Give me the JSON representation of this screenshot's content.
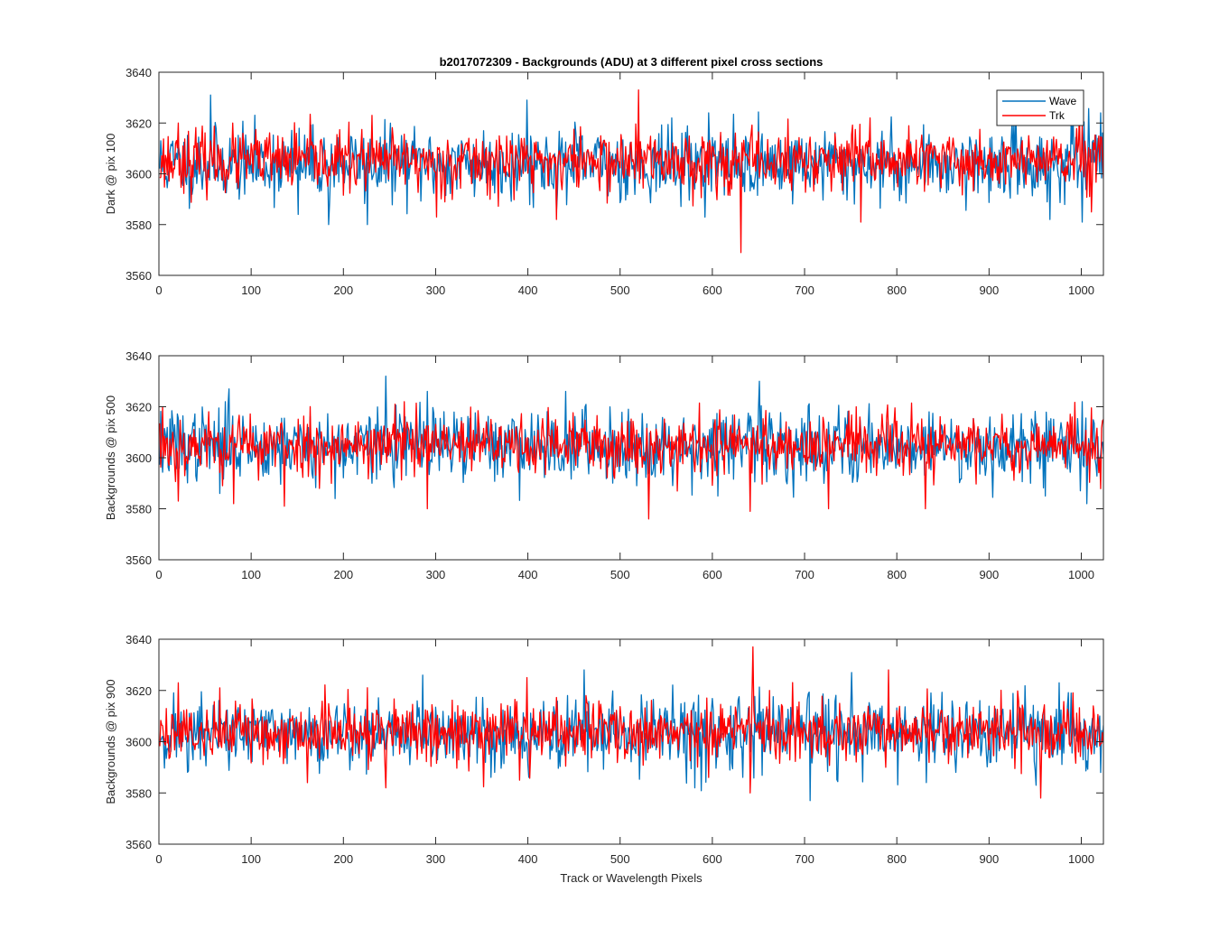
{
  "figure_title": "b2017072309 - Backgrounds (ADU) at 3 different pixel cross sections",
  "xlabel": "Track or Wavelength Pixels",
  "legend": {
    "entries": [
      "Wave",
      "Trk"
    ],
    "placement": "top-right",
    "colors": [
      "#0072BD",
      "#FF0000"
    ]
  },
  "chart_data": [
    {
      "type": "line",
      "title": "b2017072309 - Backgrounds (ADU) at 3 different pixel cross sections",
      "ylabel": "Dark @ pix 100",
      "xlabel": "",
      "xlim": [
        0,
        1024
      ],
      "ylim": [
        3560,
        3640
      ],
      "xticks": [
        0,
        100,
        200,
        300,
        400,
        500,
        600,
        700,
        800,
        900,
        1000
      ],
      "yticks": [
        3560,
        3580,
        3600,
        3620,
        3640
      ],
      "grid": false,
      "legend": "top-right",
      "series": [
        {
          "name": "Wave",
          "color": "#0072BD",
          "count": 1024,
          "mean": 3604,
          "std": 7,
          "seed": 11,
          "peaks": [
            [
              55,
              3631
            ],
            [
              398,
              3629
            ],
            [
              595,
              3624
            ],
            [
              990,
              3624
            ],
            [
              1020,
              3624
            ]
          ],
          "dips": [
            [
              183,
              3580
            ],
            [
              225,
              3580
            ],
            [
              150,
              3584
            ],
            [
              1000,
              3581
            ],
            [
              965,
              3582
            ]
          ]
        },
        {
          "name": "Trk",
          "color": "#FF0000",
          "count": 1024,
          "mean": 3605,
          "std": 6,
          "seed": 23,
          "peaks": [
            [
              519,
              3633
            ],
            [
              770,
              3622
            ],
            [
              230,
              3623
            ],
            [
              20,
              3620
            ]
          ],
          "dips": [
            [
              630,
              3569
            ],
            [
              430,
              3582
            ],
            [
              760,
              3581
            ],
            [
              300,
              3583
            ],
            [
              1010,
              3585
            ]
          ]
        }
      ]
    },
    {
      "type": "line",
      "ylabel": "Backgrounds @ pix 500",
      "xlabel": "",
      "xlim": [
        0,
        1024
      ],
      "ylim": [
        3560,
        3640
      ],
      "xticks": [
        0,
        100,
        200,
        300,
        400,
        500,
        600,
        700,
        800,
        900,
        1000
      ],
      "yticks": [
        3560,
        3580,
        3600,
        3620,
        3640
      ],
      "grid": false,
      "series": [
        {
          "name": "Wave",
          "color": "#0072BD",
          "count": 1024,
          "mean": 3605,
          "std": 7,
          "seed": 37,
          "peaks": [
            [
              245,
              3632
            ],
            [
              650,
              3630
            ],
            [
              75,
              3627
            ],
            [
              440,
              3626
            ],
            [
              290,
              3626
            ],
            [
              1000,
              3622
            ]
          ],
          "dips": [
            [
              65,
              3586
            ],
            [
              190,
              3584
            ],
            [
              605,
              3585
            ],
            [
              1005,
              3582
            ],
            [
              960,
              3585
            ]
          ]
        },
        {
          "name": "Trk",
          "color": "#FF0000",
          "count": 1024,
          "mean": 3605,
          "std": 6,
          "seed": 53,
          "peaks": [
            [
              265,
              3622
            ],
            [
              255,
              3621
            ],
            [
              3,
              3620
            ],
            [
              755,
              3620
            ]
          ],
          "dips": [
            [
              530,
              3576
            ],
            [
              135,
              3581
            ],
            [
              290,
              3580
            ],
            [
              640,
              3579
            ],
            [
              725,
              3580
            ],
            [
              830,
              3580
            ],
            [
              20,
              3583
            ],
            [
              80,
              3582
            ]
          ]
        }
      ]
    },
    {
      "type": "line",
      "ylabel": "Backgrounds @ pix 900",
      "xlabel": "Track or Wavelength Pixels",
      "xlim": [
        0,
        1024
      ],
      "ylim": [
        3560,
        3640
      ],
      "xticks": [
        0,
        100,
        200,
        300,
        400,
        500,
        600,
        700,
        800,
        900,
        1000
      ],
      "yticks": [
        3560,
        3580,
        3600,
        3620,
        3640
      ],
      "grid": false,
      "series": [
        {
          "name": "Wave",
          "color": "#0072BD",
          "count": 1024,
          "mean": 3603,
          "std": 7,
          "seed": 71,
          "peaks": [
            [
              460,
              3628
            ],
            [
              750,
              3627
            ],
            [
              285,
              3626
            ],
            [
              975,
              3623
            ]
          ],
          "dips": [
            [
              705,
              3577
            ],
            [
              580,
              3582
            ],
            [
              950,
              3583
            ],
            [
              1020,
              3588
            ]
          ]
        },
        {
          "name": "Trk",
          "color": "#FF0000",
          "count": 1024,
          "mean": 3604,
          "std": 6,
          "seed": 89,
          "peaks": [
            [
              643,
              3637
            ],
            [
              790,
              3628
            ],
            [
              398,
              3625
            ],
            [
              20,
              3623
            ],
            [
              65,
              3621
            ]
          ],
          "dips": [
            [
              640,
              3580
            ],
            [
              955,
              3578
            ],
            [
              245,
              3582
            ],
            [
              160,
              3584
            ],
            [
              390,
              3585
            ]
          ]
        }
      ]
    }
  ]
}
